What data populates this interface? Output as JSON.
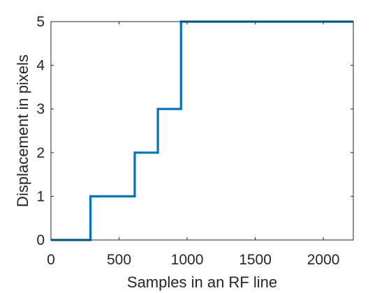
{
  "chart_data": {
    "type": "line",
    "title": "",
    "xlabel": "Samples in an RF line",
    "ylabel": "Displacement in pixels",
    "xlim": [
      0,
      2220
    ],
    "ylim": [
      0,
      5
    ],
    "xticks": [
      0,
      500,
      1000,
      1500,
      2000
    ],
    "yticks": [
      0,
      1,
      2,
      3,
      4,
      5
    ],
    "grid": false,
    "legend": "none",
    "series": [
      {
        "color": "#0072BD",
        "x": [
          0,
          290,
          290,
          615,
          615,
          785,
          785,
          955,
          955,
          2220
        ],
        "y": [
          0,
          0,
          1,
          1,
          2,
          2,
          3,
          3,
          5,
          5
        ]
      }
    ]
  }
}
